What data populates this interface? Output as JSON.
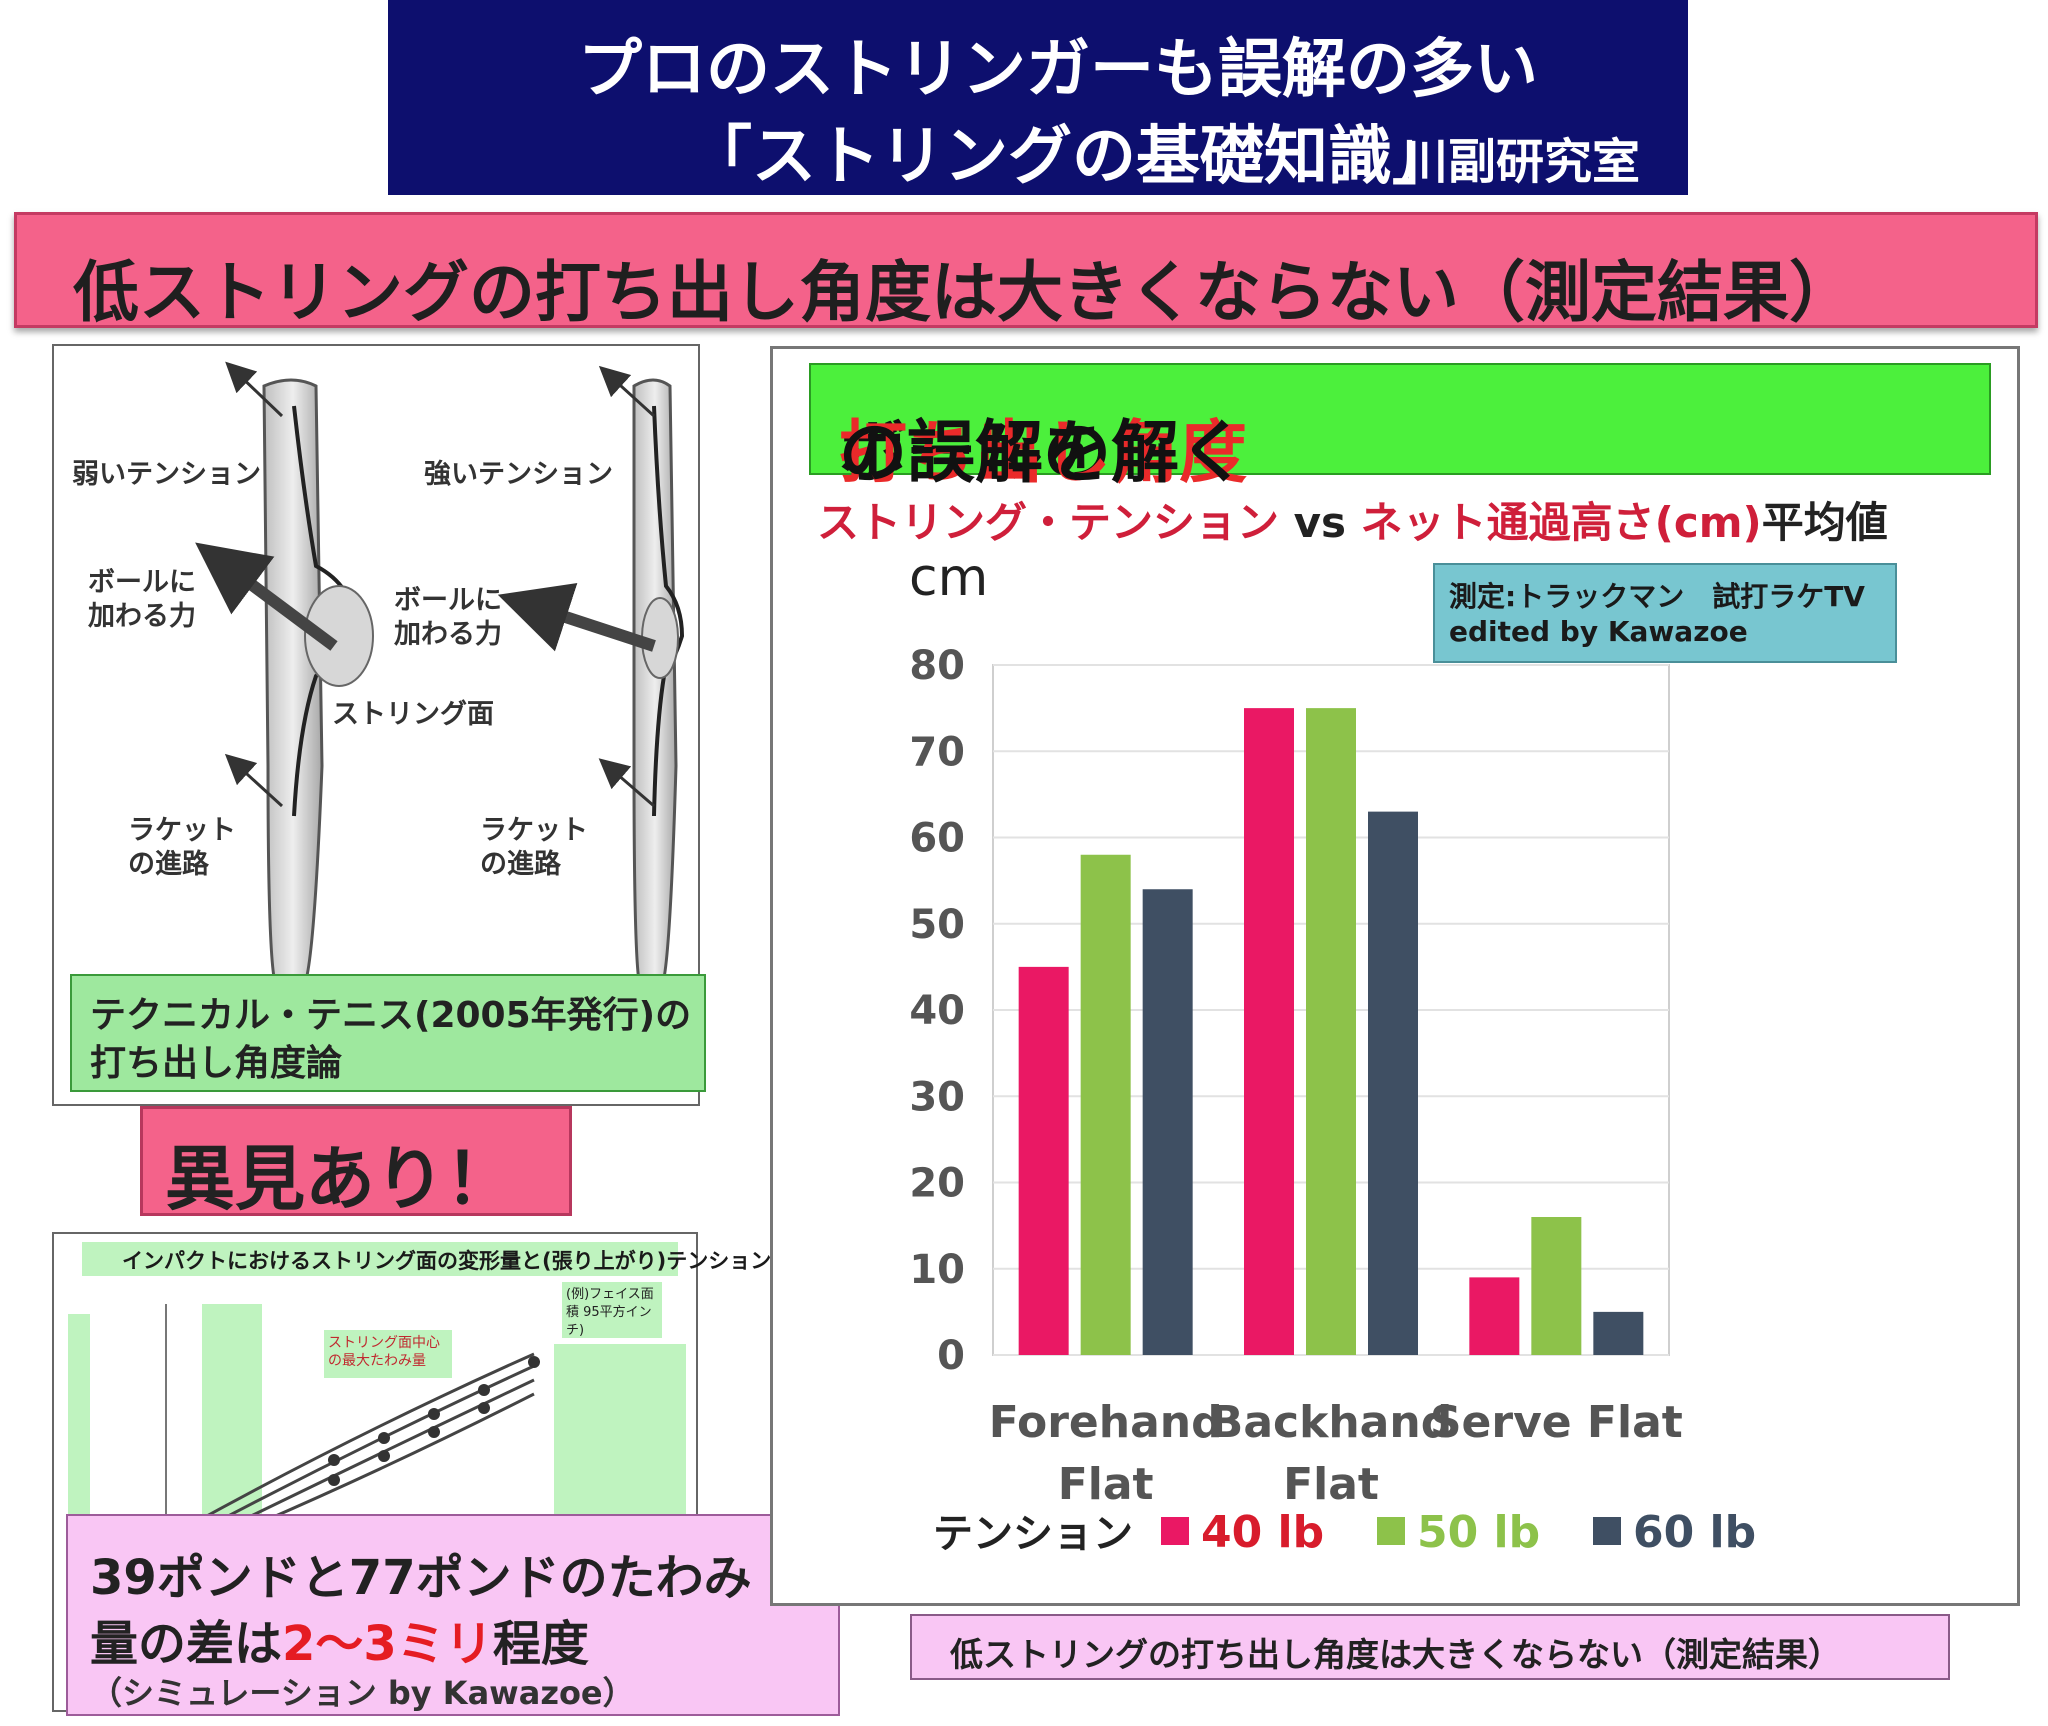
{
  "header": {
    "line1": "プロのストリンガーも誤解の多い",
    "line2": "「ストリングの基礎知識」",
    "author": "川副研究室"
  },
  "banner": {
    "text": "低ストリングの打ち出し角度は大きくならない（測定結果）"
  },
  "diagram1": {
    "label_weak": "弱いテンション",
    "label_strong": "強いテンション",
    "label_force_left_1": "ボールに",
    "label_force_left_2": "加わる力",
    "label_force_right_1": "ボールに",
    "label_force_right_2": "加わる力",
    "label_string_face": "ストリング面",
    "label_path_left_1": "ラケット",
    "label_path_left_2": "の進路",
    "label_path_right_1": "ラケット",
    "label_path_right_2": "の進路",
    "caption_line1": "テクニカル・テニス(2005年発行)の",
    "caption_line2": "打ち出し角度論"
  },
  "callout": {
    "text": "異見あり！"
  },
  "diagram2": {
    "title": "インパクトにおけるストリング面の変形量と(張り上がり)テンション",
    "note": "(例)フェイス面積 95平方インチ)",
    "center_note": "ストリング面中心の最大たわみ量",
    "caption_line1": "39ポンドと77ポンドのたわみ",
    "caption_line2_a": "量の差は",
    "caption_line2_red": "2～3ミリ",
    "caption_line2_b": "程度",
    "caption_line3": "（シミュレーション by Kawazoe）"
  },
  "panel": {
    "title_a": "ボールの",
    "title_red": "打ち出し角度",
    "title_b": "の誤解を解く",
    "subtitle_red1": "ストリング・テンション",
    "subtitle_vs": " vs ",
    "subtitle_red2": "ネット通過高さ(cm)",
    "subtitle_b": "平均値",
    "source_line1": "測定:トラックマン　試打ラケTV",
    "source_line2": "edited by Kawazoe"
  },
  "chart_data": {
    "type": "bar",
    "ylabel": "cm",
    "ylim": [
      0,
      80
    ],
    "yticks": [
      0,
      10,
      20,
      30,
      40,
      50,
      60,
      70,
      80
    ],
    "categories": [
      [
        "Forehand",
        "Flat"
      ],
      [
        "Backhand",
        "Flat"
      ],
      [
        "Serve Flat"
      ]
    ],
    "legend_title": "テンション",
    "legend_position": "bottom",
    "series": [
      {
        "name": "40 lb",
        "color": "#ea1864",
        "label_color": "#d81c2c",
        "values": [
          45,
          75,
          9
        ]
      },
      {
        "name": "50 lb",
        "color": "#8dc24a",
        "label_color": "#8dc24a",
        "values": [
          58,
          75,
          16
        ]
      },
      {
        "name": "60 lb",
        "color": "#3f4f63",
        "label_color": "#3f4f63",
        "values": [
          54,
          63,
          5
        ]
      }
    ],
    "grid": true
  },
  "bottom_caption": {
    "text": "低ストリングの打ち出し角度は大きくならない（測定結果）"
  }
}
